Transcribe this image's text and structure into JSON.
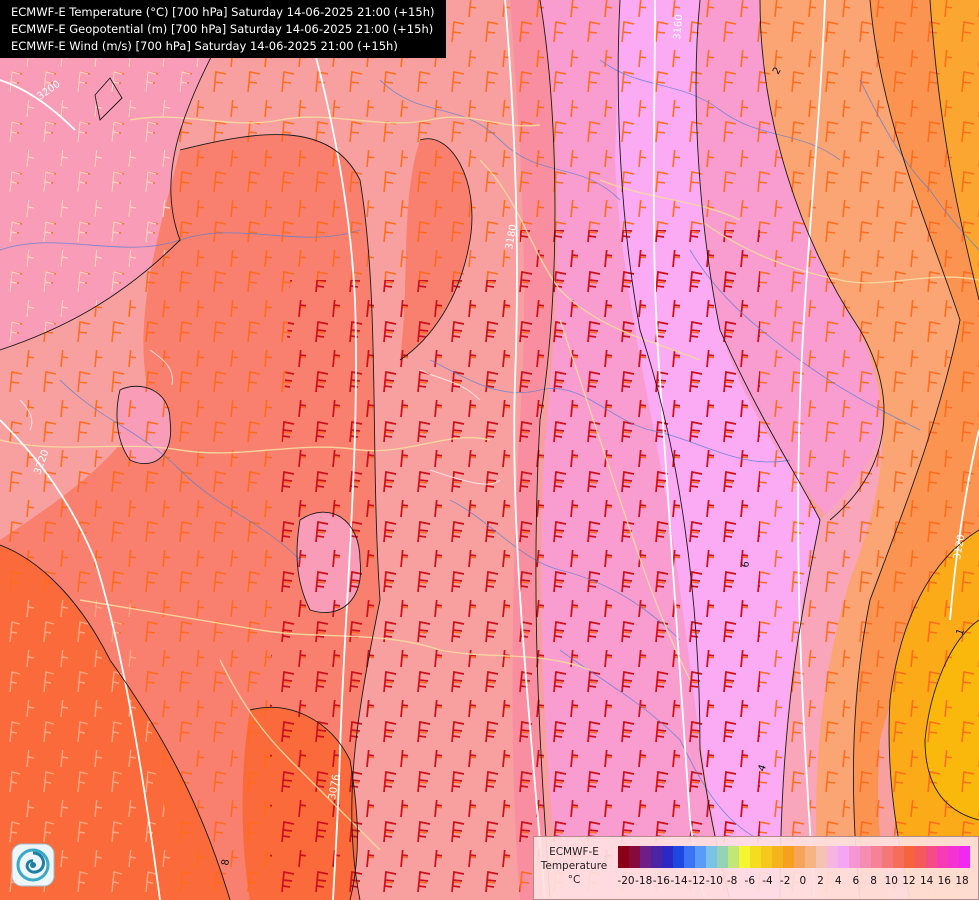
{
  "titles": [
    "ECMWF-E Temperature (°C) [700 hPa] Saturday 14-06-2025 21:00 (+15h)",
    "ECMWF-E Geopotential (m) [700 hPa] Saturday 14-06-2025 21:00 (+15h)",
    "ECMWF-E Wind (m/s) [700 hPa] Saturday 14-06-2025 21:00 (+15h)"
  ],
  "map_labels": {
    "geo_3200": "3200",
    "geo_3180": "3180",
    "geo_3160": "3160",
    "geo_3120": "3120",
    "geo_3220": "3220",
    "geo_3076": "3076",
    "temp_2": "2",
    "temp_6": "6",
    "temp_4": "4",
    "temp_8": "8",
    "temp_1": "1"
  },
  "legend": {
    "title_line1": "ECMWF-E",
    "title_line2": "Temperature",
    "title_line3": "°C",
    "colors": [
      "#8b0014",
      "#870a3c",
      "#6e1e87",
      "#4b23a5",
      "#2d28c3",
      "#1e46e1",
      "#3c73f5",
      "#5a9bf5",
      "#78c3e6",
      "#96d2b4",
      "#c3e678",
      "#f5f532",
      "#f5dc1e",
      "#f5c81e",
      "#f5b41e",
      "#f5a01e",
      "#f5a55a",
      "#f5b482",
      "#f5c3b4",
      "#f5b4e1",
      "#f5a5f5",
      "#f596d2",
      "#f58cb4",
      "#f58296",
      "#f57878",
      "#f56e5a",
      "#f5643c",
      "#f55a5a",
      "#f54b87",
      "#f53cb4",
      "#f532d2",
      "#f028f0"
    ],
    "ticks": [
      "-20",
      "-18",
      "-16",
      "-14",
      "-12",
      "-10",
      "-8",
      "-6",
      "-4",
      "-2",
      "0",
      "2",
      "4",
      "6",
      "8",
      "10",
      "12",
      "14",
      "16",
      "18"
    ]
  },
  "logo_icon": "ecmwf-swirl-logo"
}
